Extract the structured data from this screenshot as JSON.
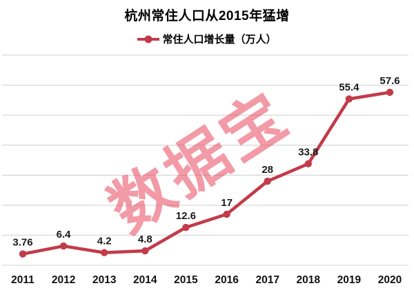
{
  "title": "杭州常住人口从2015年猛增",
  "legend": {
    "label": "常住人口增长量（万人）"
  },
  "watermark": {
    "text": "数据宝"
  },
  "colors": {
    "line": "#C23B4A",
    "grid": "#D9D9D9",
    "data_label": "#1A1A1A",
    "tick_label": "#111111",
    "watermark": "rgba(229,53,77,0.5)",
    "background": "#FFFFFF"
  },
  "chart_data": {
    "type": "line",
    "title": "杭州常住人口从2015年猛增",
    "series": [
      {
        "name": "常住人口增长量（万人）",
        "values": [
          3.76,
          6.4,
          4.2,
          4.8,
          12.6,
          17,
          28,
          33.8,
          55.4,
          57.6
        ]
      }
    ],
    "categories": [
      "2011",
      "2012",
      "2013",
      "2014",
      "2015",
      "2016",
      "2017",
      "2018",
      "2019",
      "2020"
    ],
    "data_labels": [
      "3.76",
      "6.4",
      "4.2",
      "4.8",
      "12.6",
      "17",
      "28",
      "33.8",
      "55.4",
      "57.6"
    ],
    "xlabel": "",
    "ylabel": "",
    "ylim": [
      0,
      70
    ],
    "grid_interval": 10,
    "grid": true,
    "y_axis_labels_visible": false,
    "legend_position": "top",
    "layout": {
      "plot_left": 3,
      "plot_right": 592,
      "plot_top": 80,
      "plot_bottom": 385,
      "x_first": 33,
      "x_last": 565,
      "tick_label_y": 411,
      "marker_radius": 5.2,
      "line_width": 4.6,
      "label_offset": 12
    }
  }
}
